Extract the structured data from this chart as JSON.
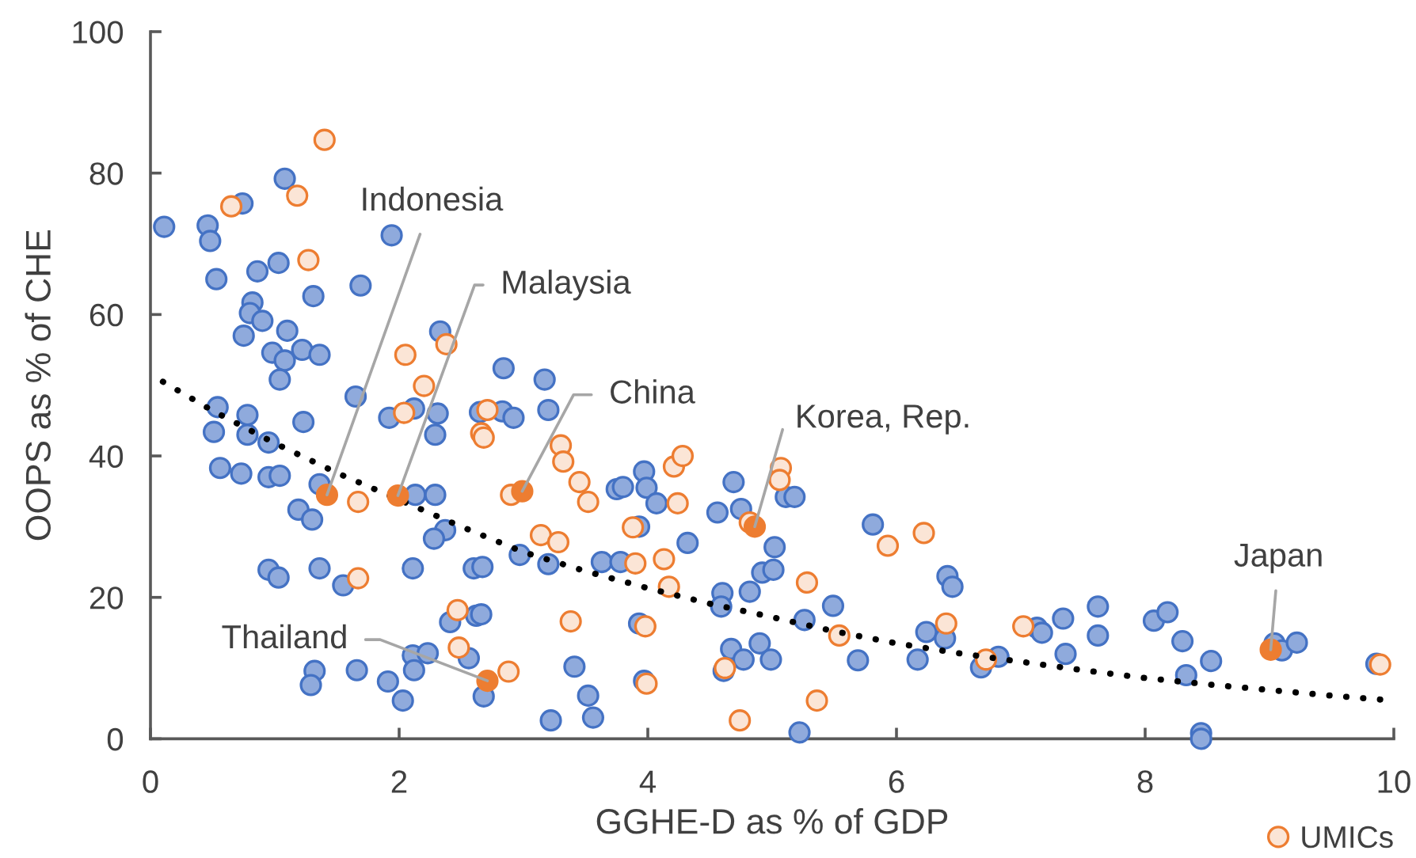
{
  "chart_data": {
    "type": "scatter",
    "xlabel": "GGHE-D as % of GDP",
    "ylabel": "OOPS as % of CHE",
    "xlim": [
      0,
      10
    ],
    "xticks": [
      0,
      2,
      4,
      6,
      8,
      10
    ],
    "ylim": [
      0,
      100
    ],
    "yticks": [
      0,
      20,
      40,
      60,
      80,
      100
    ],
    "grid": false,
    "legend": "bottom right",
    "marker": "circle",
    "series": [
      {
        "color": "#4472c4",
        "x": [
          1.08,
          0.74,
          0.11,
          0.46,
          0.48,
          1.94,
          1.03,
          0.86,
          0.53,
          1.69,
          1.31,
          0.82,
          0.8,
          0.9,
          1.1,
          0.75,
          1.22,
          1.36,
          0.98,
          1.08,
          1.04,
          2.33,
          2.84,
          3.17,
          1.65,
          1.92,
          2.12,
          2.31,
          1.23,
          0.78,
          0.54,
          0.51,
          2.29,
          2.83,
          2.92,
          2.65,
          3.2,
          0.78,
          0.95,
          0.56,
          0.73,
          0.95,
          1.04,
          1.36,
          2.13,
          2.29,
          1.19,
          1.3,
          2.37,
          2.28,
          0.95,
          1.03,
          1.36,
          1.55,
          2.11,
          2.6,
          2.67,
          2.97,
          3.2,
          2.41,
          2.62,
          2.66,
          2.56,
          2.11,
          2.23,
          2.12,
          2.68,
          1.32,
          1.29,
          1.66,
          1.91,
          2.03,
          3.22,
          3.63,
          3.78,
          3.93,
          3.75,
          3.8,
          3.97,
          3.99,
          4.07,
          4.32,
          4.69,
          4.56,
          4.75,
          5.11,
          5.18,
          5.02,
          4.92,
          5.01,
          4.6,
          4.59,
          4.82,
          5.26,
          5.49,
          5.69,
          5.81,
          6.41,
          6.45,
          6.24,
          6.39,
          6.17,
          4.67,
          4.77,
          4.9,
          4.99,
          4.61,
          3.41,
          3.52,
          3.56,
          3.93,
          3.97,
          5.22,
          6.68,
          6.82,
          7.13,
          7.17,
          7.34,
          7.36,
          7.62,
          7.62,
          8.07,
          8.18,
          8.3,
          8.33,
          8.53,
          8.45,
          8.45,
          9.04,
          9.1,
          9.22,
          9.86
        ],
        "values": [
          79.2,
          75.7,
          72.4,
          72.6,
          70.4,
          71.2,
          67.3,
          66.1,
          65.0,
          64.1,
          62.6,
          61.7,
          60.2,
          59.1,
          57.7,
          57.0,
          55.0,
          54.3,
          54.6,
          53.5,
          50.8,
          57.6,
          52.4,
          50.8,
          48.4,
          45.4,
          46.7,
          46.0,
          44.8,
          45.8,
          46.9,
          43.4,
          43.0,
          46.3,
          45.4,
          46.2,
          46.5,
          43.0,
          41.9,
          38.3,
          37.5,
          37.0,
          37.2,
          36.0,
          34.5,
          34.5,
          32.4,
          31.0,
          29.5,
          28.3,
          23.9,
          22.8,
          24.1,
          21.7,
          24.1,
          24.1,
          24.3,
          26.0,
          24.7,
          16.5,
          17.4,
          17.6,
          11.4,
          11.8,
          12.1,
          9.7,
          6.0,
          9.6,
          7.6,
          9.7,
          8.1,
          5.4,
          2.6,
          25.0,
          25.0,
          30.0,
          35.3,
          35.6,
          37.8,
          35.5,
          33.3,
          27.7,
          36.3,
          32.0,
          32.5,
          34.2,
          34.2,
          27.1,
          23.5,
          23.9,
          20.6,
          18.7,
          20.8,
          16.8,
          18.8,
          11.1,
          30.3,
          23.0,
          21.5,
          15.1,
          14.2,
          11.2,
          12.7,
          11.2,
          13.5,
          11.2,
          9.6,
          10.2,
          6.1,
          3.0,
          16.3,
          8.2,
          0.9,
          10.1,
          11.6,
          15.7,
          15.0,
          17.0,
          12.0,
          18.7,
          14.6,
          16.7,
          17.9,
          13.8,
          9.0,
          11.0,
          0.8,
          0.0,
          13.5,
          12.5,
          13.6,
          10.6
        ]
      },
      {
        "name": "UMICs",
        "color": "#ed7d31",
        "x": [
          1.4,
          1.18,
          0.65,
          1.27,
          2.38,
          2.05,
          2.2,
          2.04,
          2.71,
          2.66,
          2.68,
          1.67,
          1.67,
          3.14,
          2.9,
          2.47,
          2.48,
          2.88,
          3.3,
          3.32,
          3.45,
          3.52,
          3.28,
          3.9,
          4.13,
          4.17,
          3.88,
          4.21,
          4.28,
          4.24,
          4.82,
          5.07,
          5.06,
          5.28,
          5.54,
          5.93,
          6.22,
          6.4,
          4.62,
          3.38,
          3.98,
          3.99,
          4.74,
          5.36,
          6.72,
          7.02,
          9.89
        ],
        "values": [
          84.7,
          76.8,
          75.3,
          67.7,
          55.8,
          54.3,
          49.9,
          46.1,
          46.5,
          43.2,
          42.6,
          33.5,
          22.7,
          28.8,
          34.5,
          18.2,
          12.9,
          9.5,
          41.5,
          39.2,
          36.3,
          33.5,
          27.8,
          24.8,
          25.4,
          21.5,
          29.9,
          38.5,
          40.0,
          33.3,
          30.6,
          38.3,
          36.6,
          22.1,
          14.6,
          27.3,
          29.1,
          16.3,
          10.0,
          16.6,
          15.9,
          7.8,
          2.6,
          5.4,
          11.2,
          15.9,
          10.5
        ]
      },
      {
        "type": "line",
        "line_style": "dotted",
        "marker": "none",
        "color": "#000000",
        "x": [
          0.1,
          0.5,
          1,
          1.5,
          2,
          2.5,
          3,
          3.5,
          4,
          4.5,
          5,
          5.5,
          6,
          6.5,
          7,
          7.5,
          8,
          8.5,
          9,
          9.5,
          10
        ],
        "values": [
          50.5,
          46.4,
          41.8,
          37.6,
          33.8,
          30.0,
          26.4,
          23.7,
          21.3,
          19.1,
          17.2,
          15.2,
          13.5,
          12.1,
          10.9,
          9.7,
          8.6,
          7.7,
          6.9,
          6.1,
          5.4
        ]
      },
      {
        "color": "#ed7d31",
        "x": [
          1.42,
          1.99,
          2.99,
          4.86,
          2.71,
          9.01
        ],
        "values": [
          34.5,
          34.4,
          35.0,
          30.0,
          8.2,
          12.6
        ]
      }
    ],
    "annotations": [
      {
        "text": "Indonesia",
        "x": 1.42,
        "y": 34.5
      },
      {
        "text": "Malaysia",
        "x": 1.99,
        "y": 34.4
      },
      {
        "text": "China",
        "x": 2.99,
        "y": 35.0
      },
      {
        "text": "Korea, Rep.",
        "x": 4.86,
        "y": 30.0
      },
      {
        "text": "Thailand",
        "x": 2.71,
        "y": 8.2
      },
      {
        "text": "Japan",
        "x": 9.01,
        "y": 12.6
      }
    ]
  }
}
